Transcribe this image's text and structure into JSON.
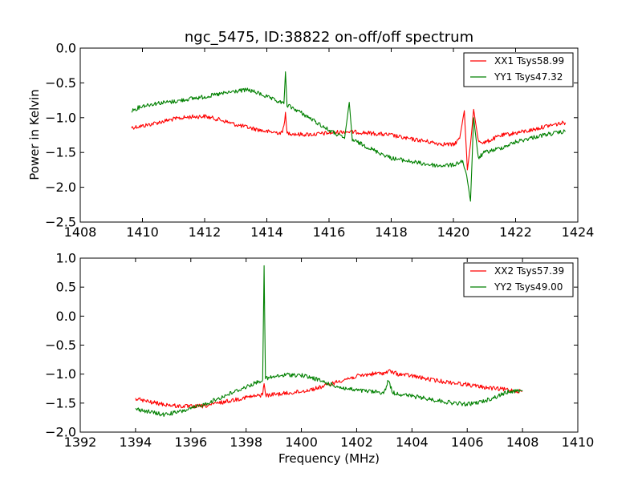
{
  "chart_data": [
    {
      "type": "line",
      "title": "ngc_5475, ID:38822 on-off/off spectrum",
      "xlabel": "",
      "ylabel": "Power in Kelvin",
      "xlim": [
        1408,
        1424
      ],
      "ylim": [
        -2.5,
        0.0
      ],
      "xticks": [
        1408,
        1410,
        1412,
        1414,
        1416,
        1418,
        1420,
        1422,
        1424
      ],
      "yticks": [
        -2.5,
        -2.0,
        -1.5,
        -1.0,
        -0.5,
        0.0
      ],
      "xtick_labels": [
        "1408",
        "1410",
        "1412",
        "1414",
        "1416",
        "1418",
        "1420",
        "1422",
        "1424"
      ],
      "ytick_labels": [
        "−2.5",
        "−2.0",
        "−1.5",
        "−1.0",
        "−0.5",
        "0.0"
      ],
      "grid": false,
      "legend_position": "top-right",
      "series": [
        {
          "name": "XX1 Tsys58.99",
          "color": "#ff0000",
          "x": [
            1409.65,
            1410.0,
            1410.5,
            1411.0,
            1411.5,
            1412.0,
            1412.5,
            1413.0,
            1413.5,
            1414.0,
            1414.5,
            1414.6,
            1414.65,
            1414.7,
            1415.0,
            1415.5,
            1416.0,
            1416.5,
            1417.0,
            1417.5,
            1418.0,
            1418.5,
            1419.0,
            1419.5,
            1420.0,
            1420.2,
            1420.35,
            1420.45,
            1420.55,
            1420.65,
            1420.8,
            1421.0,
            1421.5,
            1422.0,
            1422.5,
            1423.0,
            1423.6
          ],
          "y": [
            -1.14,
            -1.12,
            -1.07,
            -1.02,
            -0.99,
            -0.98,
            -1.03,
            -1.1,
            -1.15,
            -1.2,
            -1.22,
            -0.95,
            -1.23,
            -1.22,
            -1.24,
            -1.24,
            -1.22,
            -1.2,
            -1.21,
            -1.23,
            -1.25,
            -1.3,
            -1.33,
            -1.37,
            -1.39,
            -1.3,
            -0.9,
            -1.75,
            -1.38,
            -0.88,
            -1.33,
            -1.36,
            -1.26,
            -1.22,
            -1.18,
            -1.12,
            -1.07
          ]
        },
        {
          "name": "YY1 Tsys47.32",
          "color": "#008000",
          "x": [
            1409.65,
            1410.0,
            1410.5,
            1411.0,
            1411.5,
            1412.0,
            1412.5,
            1413.0,
            1413.4,
            1413.8,
            1414.2,
            1414.55,
            1414.6,
            1414.65,
            1415.0,
            1415.5,
            1416.0,
            1416.5,
            1416.65,
            1416.75,
            1417.0,
            1417.5,
            1418.0,
            1418.5,
            1419.0,
            1419.5,
            1420.0,
            1420.3,
            1420.45,
            1420.55,
            1420.65,
            1420.8,
            1421.0,
            1421.5,
            1422.0,
            1422.5,
            1423.0,
            1423.6
          ],
          "y": [
            -0.9,
            -0.83,
            -0.79,
            -0.77,
            -0.73,
            -0.7,
            -0.66,
            -0.62,
            -0.6,
            -0.66,
            -0.74,
            -0.8,
            -0.34,
            -0.82,
            -0.9,
            -1.04,
            -1.18,
            -1.3,
            -0.78,
            -1.32,
            -1.37,
            -1.48,
            -1.58,
            -1.62,
            -1.66,
            -1.69,
            -1.68,
            -1.62,
            -1.9,
            -2.2,
            -1.0,
            -1.58,
            -1.5,
            -1.44,
            -1.35,
            -1.29,
            -1.24,
            -1.2
          ]
        }
      ]
    },
    {
      "type": "line",
      "title": "",
      "xlabel": "Frequency (MHz)",
      "ylabel": "",
      "xlim": [
        1392,
        1410
      ],
      "ylim": [
        -2.0,
        1.0
      ],
      "xticks": [
        1392,
        1394,
        1396,
        1398,
        1400,
        1402,
        1404,
        1406,
        1408,
        1410
      ],
      "yticks": [
        -2.0,
        -1.5,
        -1.0,
        -0.5,
        0.0,
        0.5,
        1.0
      ],
      "xtick_labels": [
        "1392",
        "1394",
        "1396",
        "1398",
        "1400",
        "1402",
        "1404",
        "1406",
        "1408",
        "1410"
      ],
      "ytick_labels": [
        "−2.0",
        "−1.5",
        "−1.0",
        "−0.5",
        "0.0",
        "0.5",
        "1.0"
      ],
      "grid": false,
      "legend_position": "top-right",
      "series": [
        {
          "name": "XX2 Tsys57.39",
          "color": "#ff0000",
          "x": [
            1394.0,
            1394.5,
            1395.0,
            1395.5,
            1396.0,
            1396.5,
            1397.0,
            1397.5,
            1398.0,
            1398.5,
            1398.6,
            1398.65,
            1398.7,
            1399.0,
            1399.5,
            1400.0,
            1400.5,
            1401.0,
            1401.5,
            1402.0,
            1402.5,
            1403.0,
            1403.2,
            1403.5,
            1404.0,
            1404.5,
            1405.0,
            1405.5,
            1406.0,
            1406.5,
            1407.0,
            1407.5,
            1408.0
          ],
          "y": [
            -1.42,
            -1.48,
            -1.52,
            -1.55,
            -1.56,
            -1.55,
            -1.5,
            -1.45,
            -1.4,
            -1.37,
            -1.35,
            -1.13,
            -1.37,
            -1.35,
            -1.33,
            -1.3,
            -1.25,
            -1.18,
            -1.1,
            -1.04,
            -1.0,
            -0.98,
            -0.95,
            -1.0,
            -1.03,
            -1.08,
            -1.12,
            -1.15,
            -1.18,
            -1.22,
            -1.25,
            -1.27,
            -1.3
          ]
        },
        {
          "name": "YY2 Tsys49.00",
          "color": "#008000",
          "x": [
            1394.0,
            1394.5,
            1395.0,
            1395.5,
            1396.0,
            1396.5,
            1397.0,
            1397.5,
            1398.0,
            1398.5,
            1398.6,
            1398.65,
            1398.7,
            1399.0,
            1399.5,
            1400.0,
            1400.5,
            1401.0,
            1401.5,
            1402.0,
            1402.5,
            1403.0,
            1403.15,
            1403.3,
            1403.5,
            1404.0,
            1404.5,
            1405.0,
            1405.5,
            1406.0,
            1406.5,
            1407.0,
            1407.5,
            1408.0
          ],
          "y": [
            -1.6,
            -1.65,
            -1.7,
            -1.66,
            -1.6,
            -1.52,
            -1.42,
            -1.32,
            -1.22,
            -1.12,
            -1.1,
            0.87,
            -1.08,
            -1.05,
            -1.01,
            -1.02,
            -1.08,
            -1.17,
            -1.24,
            -1.28,
            -1.3,
            -1.32,
            -1.1,
            -1.32,
            -1.34,
            -1.38,
            -1.42,
            -1.46,
            -1.5,
            -1.52,
            -1.48,
            -1.4,
            -1.3,
            -1.28
          ]
        }
      ]
    }
  ]
}
